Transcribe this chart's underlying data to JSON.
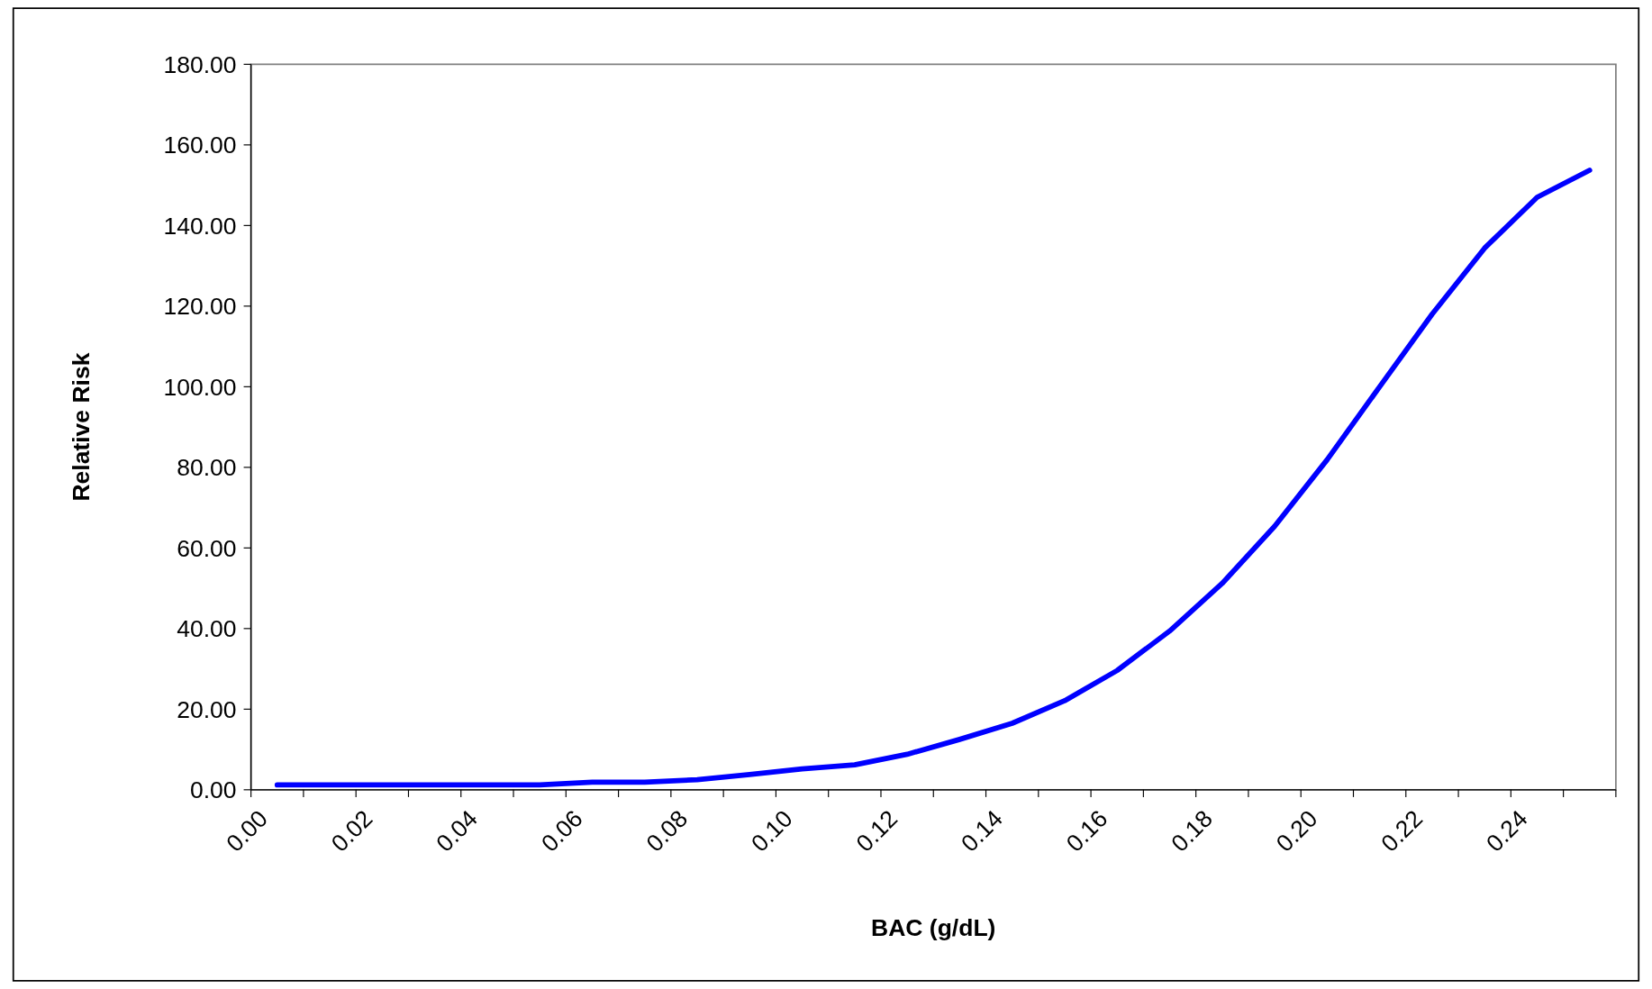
{
  "chart_data": {
    "type": "line",
    "xlabel": "BAC (g/dL)",
    "ylabel": "Relative Risk",
    "x": [
      0.005,
      0.015,
      0.025,
      0.035,
      0.045,
      0.055,
      0.065,
      0.075,
      0.085,
      0.095,
      0.105,
      0.115,
      0.125,
      0.135,
      0.145,
      0.155,
      0.165,
      0.175,
      0.185,
      0.195,
      0.205,
      0.215,
      0.225,
      0.235,
      0.245,
      0.255
    ],
    "series": [
      {
        "color": "#0000ff",
        "values": [
          1.2,
          1.2,
          1.2,
          1.2,
          1.2,
          1.2,
          1.9,
          1.9,
          2.5,
          3.8,
          5.2,
          6.2,
          8.8,
          12.5,
          16.5,
          22.1,
          29.6,
          39.4,
          51.2,
          65.4,
          81.9,
          100,
          118,
          134.4,
          147,
          153.7
        ]
      }
    ],
    "xlim": [
      0,
      0.26
    ],
    "xticks": [
      {
        "value": 0,
        "label": "0.00"
      },
      {
        "value": 0.01,
        "label": null
      },
      {
        "value": 0.02,
        "label": "0.02"
      },
      {
        "value": 0.03,
        "label": null
      },
      {
        "value": 0.04,
        "label": "0.04"
      },
      {
        "value": 0.05,
        "label": null
      },
      {
        "value": 0.06,
        "label": "0.06"
      },
      {
        "value": 0.07,
        "label": null
      },
      {
        "value": 0.08,
        "label": "0.08"
      },
      {
        "value": 0.09,
        "label": null
      },
      {
        "value": 0.1,
        "label": "0.10"
      },
      {
        "value": 0.11,
        "label": null
      },
      {
        "value": 0.12,
        "label": "0.12"
      },
      {
        "value": 0.13,
        "label": null
      },
      {
        "value": 0.14,
        "label": "0.14"
      },
      {
        "value": 0.15,
        "label": null
      },
      {
        "value": 0.16,
        "label": "0.16"
      },
      {
        "value": 0.17,
        "label": null
      },
      {
        "value": 0.18,
        "label": "0.18"
      },
      {
        "value": 0.19,
        "label": null
      },
      {
        "value": 0.2,
        "label": "0.20"
      },
      {
        "value": 0.21,
        "label": null
      },
      {
        "value": 0.22,
        "label": "0.22"
      },
      {
        "value": 0.23,
        "label": null
      },
      {
        "value": 0.24,
        "label": "0.24"
      },
      {
        "value": 0.25,
        "label": null
      },
      {
        "value": 0.26,
        "label": null
      }
    ],
    "ylim": [
      0,
      180
    ],
    "yticks": [
      {
        "value": 0,
        "label": "0.00"
      },
      {
        "value": 20,
        "label": "20.00"
      },
      {
        "value": 40,
        "label": "40.00"
      },
      {
        "value": 60,
        "label": "60.00"
      },
      {
        "value": 80,
        "label": "80.00"
      },
      {
        "value": 100,
        "label": "100.00"
      },
      {
        "value": 120,
        "label": "120.00"
      },
      {
        "value": 140,
        "label": "140.00"
      },
      {
        "value": 160,
        "label": "160.00"
      },
      {
        "value": 180,
        "label": "180.00"
      }
    ],
    "grid": false,
    "marker": "none",
    "line_style": "solid"
  }
}
